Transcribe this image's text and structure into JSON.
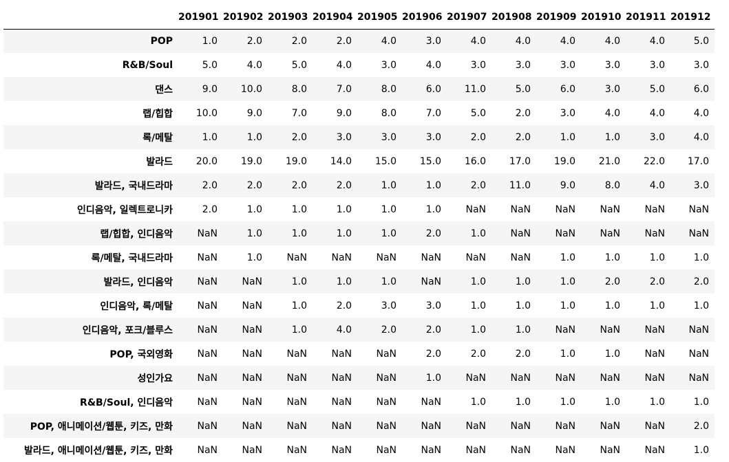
{
  "table": {
    "index_header": "",
    "columns": [
      "201901",
      "201902",
      "201903",
      "201904",
      "201905",
      "201906",
      "201907",
      "201908",
      "201909",
      "201910",
      "201911",
      "201912"
    ],
    "rows": [
      {
        "label": "POP",
        "values": [
          "1.0",
          "2.0",
          "2.0",
          "2.0",
          "4.0",
          "3.0",
          "4.0",
          "4.0",
          "4.0",
          "4.0",
          "4.0",
          "5.0"
        ]
      },
      {
        "label": "R&B/Soul",
        "values": [
          "5.0",
          "4.0",
          "5.0",
          "4.0",
          "3.0",
          "4.0",
          "3.0",
          "3.0",
          "3.0",
          "3.0",
          "3.0",
          "3.0"
        ]
      },
      {
        "label": "댄스",
        "values": [
          "9.0",
          "10.0",
          "8.0",
          "7.0",
          "8.0",
          "6.0",
          "11.0",
          "5.0",
          "6.0",
          "3.0",
          "5.0",
          "6.0"
        ]
      },
      {
        "label": "랩/힙합",
        "values": [
          "10.0",
          "9.0",
          "7.0",
          "9.0",
          "8.0",
          "7.0",
          "5.0",
          "2.0",
          "3.0",
          "4.0",
          "4.0",
          "4.0"
        ]
      },
      {
        "label": "록/메탈",
        "values": [
          "1.0",
          "1.0",
          "2.0",
          "3.0",
          "3.0",
          "3.0",
          "2.0",
          "2.0",
          "1.0",
          "1.0",
          "3.0",
          "4.0"
        ]
      },
      {
        "label": "발라드",
        "values": [
          "20.0",
          "19.0",
          "19.0",
          "14.0",
          "15.0",
          "15.0",
          "16.0",
          "17.0",
          "19.0",
          "21.0",
          "22.0",
          "17.0"
        ]
      },
      {
        "label": "발라드, 국내드라마",
        "values": [
          "2.0",
          "2.0",
          "2.0",
          "2.0",
          "1.0",
          "1.0",
          "2.0",
          "11.0",
          "9.0",
          "8.0",
          "4.0",
          "3.0"
        ]
      },
      {
        "label": "인디음악, 일렉트로니카",
        "values": [
          "2.0",
          "1.0",
          "1.0",
          "1.0",
          "1.0",
          "1.0",
          "NaN",
          "NaN",
          "NaN",
          "NaN",
          "NaN",
          "NaN"
        ]
      },
      {
        "label": "랩/힙합, 인디음악",
        "values": [
          "NaN",
          "1.0",
          "1.0",
          "1.0",
          "1.0",
          "2.0",
          "1.0",
          "NaN",
          "NaN",
          "NaN",
          "NaN",
          "NaN"
        ]
      },
      {
        "label": "록/메탈, 국내드라마",
        "values": [
          "NaN",
          "1.0",
          "NaN",
          "NaN",
          "NaN",
          "NaN",
          "NaN",
          "NaN",
          "1.0",
          "1.0",
          "1.0",
          "1.0"
        ]
      },
      {
        "label": "발라드, 인디음악",
        "values": [
          "NaN",
          "NaN",
          "1.0",
          "1.0",
          "1.0",
          "NaN",
          "1.0",
          "1.0",
          "1.0",
          "2.0",
          "2.0",
          "2.0"
        ]
      },
      {
        "label": "인디음악, 록/메탈",
        "values": [
          "NaN",
          "NaN",
          "1.0",
          "2.0",
          "3.0",
          "3.0",
          "1.0",
          "1.0",
          "1.0",
          "1.0",
          "1.0",
          "1.0"
        ]
      },
      {
        "label": "인디음악, 포크/블루스",
        "values": [
          "NaN",
          "NaN",
          "1.0",
          "4.0",
          "2.0",
          "2.0",
          "1.0",
          "1.0",
          "NaN",
          "NaN",
          "NaN",
          "NaN"
        ]
      },
      {
        "label": "POP, 국외영화",
        "values": [
          "NaN",
          "NaN",
          "NaN",
          "NaN",
          "NaN",
          "2.0",
          "2.0",
          "2.0",
          "1.0",
          "1.0",
          "NaN",
          "NaN"
        ]
      },
      {
        "label": "성인가요",
        "values": [
          "NaN",
          "NaN",
          "NaN",
          "NaN",
          "NaN",
          "1.0",
          "NaN",
          "NaN",
          "NaN",
          "NaN",
          "NaN",
          "NaN"
        ]
      },
      {
        "label": "R&B/Soul, 인디음악",
        "values": [
          "NaN",
          "NaN",
          "NaN",
          "NaN",
          "NaN",
          "NaN",
          "1.0",
          "1.0",
          "1.0",
          "1.0",
          "1.0",
          "1.0"
        ]
      },
      {
        "label": "POP, 애니메이션/웹툰, 키즈, 만화",
        "values": [
          "NaN",
          "NaN",
          "NaN",
          "NaN",
          "NaN",
          "NaN",
          "NaN",
          "NaN",
          "NaN",
          "NaN",
          "NaN",
          "2.0"
        ]
      },
      {
        "label": "발라드, 애니메이션/웹툰, 키즈, 만화",
        "values": [
          "NaN",
          "NaN",
          "NaN",
          "NaN",
          "NaN",
          "NaN",
          "NaN",
          "NaN",
          "NaN",
          "NaN",
          "NaN",
          "1.0"
        ]
      }
    ]
  }
}
